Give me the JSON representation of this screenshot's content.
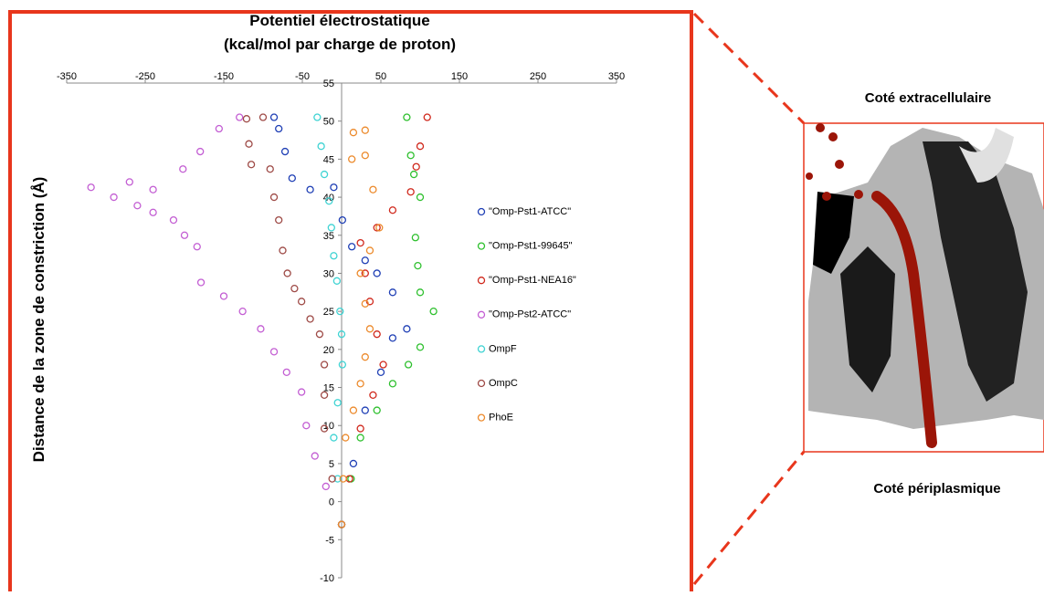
{
  "chart_data": {
    "type": "scatter",
    "title": [
      "Potentiel électrostatique",
      "(kcal/mol par charge de proton)"
    ],
    "y_label": "Distance de la zone de constriction (Å)",
    "xlim": [
      -350,
      350
    ],
    "xticks": [
      -350,
      -250,
      -150,
      -50,
      50,
      150,
      250,
      350
    ],
    "ylim": [
      -10,
      55
    ],
    "yticks": [
      55,
      50,
      45,
      40,
      35,
      30,
      25,
      20,
      15,
      10,
      5,
      0,
      -5,
      -10
    ],
    "series": [
      {
        "name": "\"Omp-Pst1-ATCC\"",
        "color": "#1f3fb5",
        "x": [
          0,
          15,
          30,
          50,
          65,
          83,
          65,
          45,
          30,
          13,
          1,
          -10,
          -40,
          -63,
          -72,
          -80,
          -86
        ],
        "values": [
          -3,
          5,
          12,
          17,
          21.5,
          22.7,
          27.5,
          30,
          31.7,
          33.5,
          37,
          41.3,
          41,
          42.5,
          46,
          49,
          50.5
        ]
      },
      {
        "name": "\"Omp-Pst1-99645\"",
        "color": "#2ec02e",
        "x": [
          0,
          12,
          24,
          45,
          65,
          85,
          100,
          117,
          100,
          97,
          94,
          100,
          92,
          88,
          83
        ],
        "values": [
          -3,
          3,
          8.4,
          12,
          15.5,
          18,
          20.3,
          25,
          27.5,
          31,
          34.7,
          40,
          43,
          45.5,
          50.5
        ]
      },
      {
        "name": "\"Omp-Pst1-NEA16\"",
        "color": "#d0281c",
        "x": [
          0,
          10,
          24,
          40,
          53,
          45,
          36,
          30,
          24,
          45,
          65,
          88,
          95,
          100,
          109
        ],
        "values": [
          -3,
          3,
          9.6,
          14,
          18,
          22,
          26.3,
          30,
          34,
          36,
          38.3,
          40.7,
          44,
          46.7,
          50.5
        ]
      },
      {
        "name": "\"Omp-Pst2-ATCC\"",
        "color": "#c35ed3",
        "x": [
          0,
          -20,
          -34,
          -45,
          -51,
          -70,
          -86,
          -103,
          -126,
          -150,
          -179,
          -184,
          -200,
          -214,
          -240,
          -260,
          -290,
          -319,
          -270,
          -240,
          -202,
          -180,
          -156,
          -130
        ],
        "values": [
          -3,
          2,
          6,
          10,
          14.4,
          17,
          19.7,
          22.7,
          25,
          27,
          28.8,
          33.5,
          35,
          37,
          38,
          38.9,
          40,
          41.3,
          42,
          41,
          43.7,
          46,
          49,
          50.5
        ]
      },
      {
        "name": "OmpF",
        "color": "#3fd3d3",
        "x": [
          0,
          -5,
          -10,
          -5,
          1,
          0,
          -2,
          -6,
          -10,
          -13,
          -16,
          -22,
          -26,
          -31
        ],
        "values": [
          -3,
          3,
          8.4,
          13,
          18,
          22,
          25,
          29,
          32.3,
          36,
          39.5,
          43,
          46.7,
          50.5
        ]
      },
      {
        "name": "OmpC",
        "color": "#9e4a46",
        "x": [
          0,
          -12,
          -22,
          -22,
          -22,
          -28,
          -40,
          -51,
          -60,
          -69,
          -75,
          -80,
          -86,
          -91,
          -115,
          -118,
          -121,
          -100
        ],
        "values": [
          -3,
          3,
          9.6,
          14,
          18,
          22,
          24,
          26.3,
          28,
          30,
          33,
          37,
          40,
          43.7,
          44.3,
          47,
          50.3,
          50.5
        ]
      },
      {
        "name": "PhoE",
        "color": "#ec8a2c",
        "x": [
          0,
          2,
          5,
          15,
          24,
          30,
          36,
          30,
          24,
          36,
          48,
          40,
          30,
          13,
          15,
          30
        ],
        "values": [
          -3,
          3,
          8.4,
          12,
          15.5,
          19,
          22.7,
          26,
          30,
          33,
          36,
          41,
          45.5,
          45,
          48.5,
          48.8
        ]
      }
    ]
  },
  "panel": {
    "top_label": "Coté extracellulaire",
    "bottom_label": "Coté périplasmique"
  }
}
